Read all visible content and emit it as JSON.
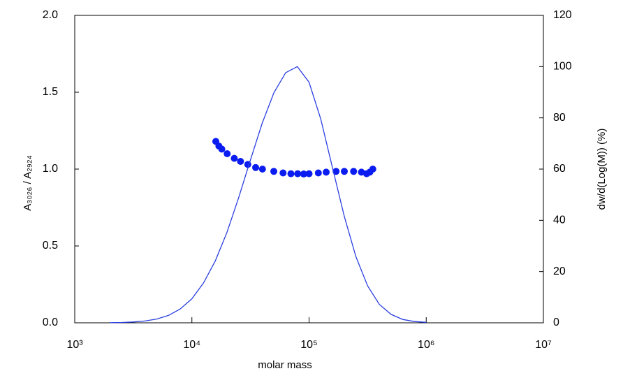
{
  "chart_data": {
    "type": "scatter-line",
    "x_label": "molar mass",
    "y_label": "A₃₀₂₆ / A₂₉₂₄",
    "y2_label": "dw/d(Log(M)) (%)",
    "log_x": true,
    "xlim": [
      1000,
      10000000
    ],
    "xticks": [
      {
        "value": 1000,
        "label": "10³"
      },
      {
        "value": 10000,
        "label": "10⁴"
      },
      {
        "value": 100000,
        "label": "10⁵"
      },
      {
        "value": 1000000,
        "label": "10⁶"
      },
      {
        "value": 10000000,
        "label": "10⁷"
      }
    ],
    "ylim": [
      0,
      2
    ],
    "yticks": [
      {
        "value": 0,
        "label": "0.0"
      },
      0.5,
      {
        "value": 1,
        "label": "1.0"
      },
      1.5,
      {
        "value": 2,
        "label": "2.0"
      }
    ],
    "y2lim": [
      0,
      120
    ],
    "y2ticks": [
      0,
      20,
      40,
      60,
      80,
      100,
      120
    ],
    "series": [
      {
        "kind": "scatter",
        "color": "#0a1cf0",
        "x": [
          16000,
          17000,
          18000,
          20000,
          23000,
          26000,
          30000,
          35000,
          40000,
          50000,
          60000,
          70000,
          80000,
          90000,
          100000,
          120000,
          140000,
          170000,
          200000,
          240000,
          280000,
          310000,
          330000,
          350000
        ],
        "values": [
          1.18,
          1.15,
          1.13,
          1.1,
          1.07,
          1.05,
          1.03,
          1.01,
          1.0,
          0.985,
          0.975,
          0.97,
          0.97,
          0.968,
          0.97,
          0.975,
          0.98,
          0.985,
          0.985,
          0.985,
          0.98,
          0.97,
          0.98,
          1.0
        ]
      },
      {
        "kind": "line",
        "axis": "y2",
        "color": "#2a3fe0",
        "x": [
          1995,
          2512,
          3162,
          3981,
          5012,
          6310,
          7943,
          10000,
          12589,
          15849,
          19953,
          25119,
          31623,
          39811,
          50119,
          63096,
          79433,
          100000,
          125893,
          158489,
          199526,
          251189,
          316228,
          398107,
          501187,
          630957,
          794328,
          1000000
        ],
        "values": [
          0.054,
          0.13,
          0.32,
          0.71,
          1.48,
          2.9,
          5.4,
          9.4,
          15.6,
          24.2,
          35.4,
          49.0,
          63.6,
          77.9,
          89.8,
          97.6,
          100,
          93.9,
          79.5,
          60.6,
          41.7,
          25.8,
          14.4,
          7.2,
          3.3,
          1.3,
          0.5,
          0.2
        ]
      }
    ]
  }
}
